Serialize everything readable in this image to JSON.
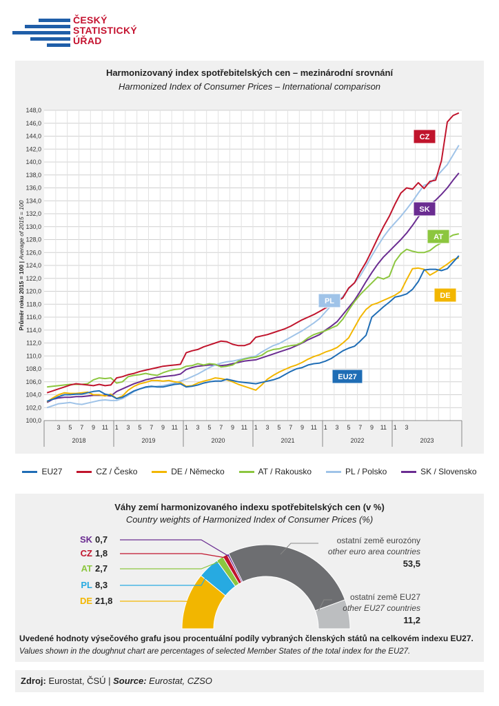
{
  "logo": {
    "line1": "ČESKÝ",
    "line2": "STATISTICKÝ",
    "line3": "ÚŘAD"
  },
  "header": {
    "title_cz": "Harmonizovaný index spotřebitelských cen – mezinárodní srovnání",
    "title_en": "Harmonized Index of Consumer Prices – International comparison"
  },
  "chart_data": [
    {
      "type": "line",
      "ylabel_cz": "Průměr roku 2015 = 100",
      "ylabel_sep": " | ",
      "ylabel_en": "Average of 2015 = 100",
      "ylim": [
        100,
        148
      ],
      "yticks": [
        "100,0",
        "102,0",
        "104,0",
        "106,0",
        "108,0",
        "110,0",
        "112,0",
        "114,0",
        "116,0",
        "118,0",
        "120,0",
        "122,0",
        "124,0",
        "126,0",
        "128,0",
        "130,0",
        "132,0",
        "134,0",
        "136,0",
        "138,0",
        "140,0",
        "142,0",
        "144,0",
        "146,0",
        "148,0"
      ],
      "x_month_ticks": [
        "3",
        "5",
        "7",
        "9",
        "11",
        "1",
        "3",
        "5",
        "7",
        "9",
        "11",
        "1",
        "3",
        "5",
        "7",
        "9",
        "11",
        "1",
        "3",
        "5",
        "7",
        "9",
        "11",
        "1",
        "3",
        "5",
        "7",
        "9",
        "11",
        "1",
        "3"
      ],
      "years": [
        "2018",
        "2019",
        "2020",
        "2021",
        "2022",
        "2023"
      ],
      "x_start": "2018-01",
      "x_end": "2023-03",
      "grid": true,
      "series": [
        {
          "name": "EU27",
          "color": "#1f6db5",
          "label": "EU27",
          "values": [
            103.0,
            103.3,
            103.7,
            104.0,
            104.0,
            104.1,
            104.1,
            104.3,
            104.5,
            104.6,
            104.1,
            103.9,
            103.4,
            103.6,
            104.1,
            104.6,
            104.9,
            105.2,
            105.3,
            105.2,
            105.2,
            105.4,
            105.6,
            105.7,
            105.2,
            105.3,
            105.5,
            105.8,
            106.0,
            106.1,
            106.1,
            106.4,
            106.2,
            106.0,
            105.9,
            105.8,
            105.7,
            105.9,
            106.1,
            106.3,
            106.6,
            107.1,
            107.6,
            108.0,
            108.2,
            108.6,
            108.8,
            108.9,
            109.2,
            109.6,
            110.2,
            110.8,
            111.2,
            111.5,
            112.3,
            113.2,
            116.0,
            116.8,
            117.6,
            118.3,
            119.1,
            119.3,
            119.6,
            120.3,
            121.5,
            123.3,
            123.4,
            123.4,
            123.2,
            123.5,
            124.5,
            125.5
          ]
        },
        {
          "name": "CZ / Česko",
          "color": "#c0142c",
          "label": "CZ",
          "values": [
            104.3,
            104.6,
            104.9,
            105.2,
            105.5,
            105.7,
            105.6,
            105.5,
            105.4,
            105.6,
            105.4,
            105.5,
            106.6,
            106.8,
            107.1,
            107.3,
            107.6,
            107.8,
            108.0,
            108.2,
            108.4,
            108.5,
            108.6,
            108.7,
            110.5,
            110.8,
            111.0,
            111.4,
            111.7,
            112.0,
            112.3,
            112.2,
            111.8,
            111.6,
            111.6,
            111.9,
            112.9,
            113.1,
            113.3,
            113.6,
            113.9,
            114.2,
            114.6,
            115.1,
            115.6,
            116.0,
            116.4,
            116.9,
            117.4,
            117.8,
            118.4,
            119.0,
            120.5,
            121.3,
            123.0,
            124.5,
            126.3,
            128.2,
            130.0,
            131.6,
            133.5,
            135.2,
            136.0,
            135.8,
            136.8,
            135.9,
            137.0,
            137.2,
            140.2,
            146.2,
            147.2,
            147.6
          ]
        },
        {
          "name": "DE / Německo",
          "color": "#f2b600",
          "label": "DE",
          "values": [
            102.9,
            103.5,
            104.0,
            104.3,
            104.2,
            104.2,
            104.3,
            104.4,
            104.0,
            104.0,
            103.8,
            104.1,
            103.4,
            103.8,
            104.7,
            105.3,
            105.7,
            105.9,
            106.2,
            106.2,
            106.1,
            106.2,
            106.0,
            105.9,
            105.3,
            105.4,
            105.8,
            106.1,
            106.3,
            106.6,
            106.5,
            106.3,
            106.0,
            105.6,
            105.3,
            105.0,
            104.7,
            105.5,
            106.4,
            107.0,
            107.5,
            107.9,
            108.3,
            108.6,
            109.0,
            109.5,
            109.9,
            110.2,
            110.6,
            110.9,
            111.3,
            112.0,
            112.8,
            114.4,
            116.0,
            117.2,
            117.9,
            118.2,
            118.6,
            119.0,
            119.4,
            120.0,
            121.8,
            123.5,
            123.6,
            123.4,
            122.5,
            123.0,
            123.6,
            124.2,
            124.9,
            125.2
          ]
        },
        {
          "name": "AT / Rakousko",
          "color": "#8cc63f",
          "label": "AT",
          "values": [
            105.2,
            105.3,
            105.4,
            105.5,
            105.6,
            105.6,
            105.6,
            105.7,
            106.3,
            106.6,
            106.5,
            106.6,
            105.8,
            106.0,
            106.8,
            107.0,
            107.1,
            107.3,
            107.1,
            107.0,
            107.4,
            107.7,
            107.9,
            108.0,
            108.4,
            108.5,
            108.8,
            108.6,
            108.8,
            108.7,
            108.3,
            108.4,
            108.6,
            109.2,
            109.5,
            109.7,
            109.8,
            110.1,
            110.7,
            111.0,
            111.1,
            111.4,
            111.6,
            111.7,
            112.1,
            112.8,
            113.3,
            113.6,
            113.9,
            114.3,
            114.7,
            115.7,
            117.1,
            118.4,
            119.5,
            120.4,
            121.3,
            122.2,
            121.9,
            122.3,
            124.6,
            125.8,
            126.5,
            126.2,
            126.0,
            126.0,
            126.3,
            127.0,
            127.5,
            128.2,
            128.7,
            128.9
          ]
        },
        {
          "name": "PL / Polsko",
          "color": "#9fc3e8",
          "label": "PL",
          "values": [
            102.0,
            102.3,
            102.6,
            102.7,
            102.8,
            102.6,
            102.5,
            102.7,
            102.9,
            103.1,
            103.2,
            103.1,
            103.1,
            103.4,
            103.9,
            104.5,
            104.9,
            105.1,
            105.2,
            105.3,
            105.4,
            105.6,
            105.8,
            106.1,
            106.4,
            106.8,
            107.2,
            107.7,
            108.2,
            108.6,
            108.9,
            109.1,
            109.2,
            109.4,
            109.6,
            109.8,
            110.0,
            110.6,
            111.1,
            111.6,
            111.9,
            112.4,
            112.9,
            113.4,
            113.9,
            114.5,
            115.1,
            115.8,
            116.8,
            117.8,
            118.4,
            119.2,
            120.4,
            121.3,
            122.4,
            123.9,
            125.5,
            127.0,
            128.4,
            129.6,
            130.6,
            131.6,
            132.7,
            133.9,
            135.2,
            136.4,
            136.7,
            137.6,
            138.6,
            139.6,
            141.1,
            142.6
          ]
        },
        {
          "name": "SK / Slovensko",
          "color": "#6a2c91",
          "label": "SK",
          "values": [
            102.8,
            103.3,
            103.5,
            103.6,
            103.6,
            103.7,
            103.7,
            103.8,
            103.9,
            103.9,
            103.9,
            103.8,
            104.5,
            104.9,
            105.3,
            105.7,
            106.0,
            106.3,
            106.5,
            106.7,
            106.8,
            106.9,
            107.0,
            107.2,
            107.9,
            108.2,
            108.4,
            108.5,
            108.6,
            108.6,
            108.5,
            108.6,
            108.8,
            109.0,
            109.2,
            109.3,
            109.4,
            109.7,
            110.0,
            110.3,
            110.6,
            110.9,
            111.2,
            111.6,
            112.0,
            112.5,
            112.9,
            113.3,
            114.0,
            114.6,
            115.3,
            116.4,
            117.5,
            118.6,
            120.0,
            121.5,
            122.9,
            124.2,
            125.3,
            126.2,
            127.1,
            128.0,
            129.0,
            130.2,
            131.5,
            132.6,
            133.4,
            134.1,
            135.0,
            136.0,
            137.2,
            138.3
          ]
        }
      ],
      "legend": [
        "EU27",
        "CZ / Česko",
        "DE / Německo",
        "AT / Rakousko",
        "PL / Polsko",
        "SK / Slovensko"
      ],
      "legend_position": "bottom"
    },
    {
      "type": "pie",
      "title_cz": "Váhy zemí harmonizovaného indexu spotřebitelských cen (v %)",
      "title_en": "Country weights of Harmonized Index of Consumer Prices (%)",
      "slices": [
        {
          "code": "DE",
          "value": 21.8,
          "value_text": "21,8",
          "color": "#f2b600"
        },
        {
          "code": "PL",
          "value": 8.3,
          "value_text": "8,3",
          "color": "#27aae1"
        },
        {
          "code": "AT",
          "value": 2.7,
          "value_text": "2,7",
          "color": "#8cc63f"
        },
        {
          "code": "CZ",
          "value": 1.8,
          "value_text": "1,8",
          "color": "#c0142c"
        },
        {
          "code": "SK",
          "value": 0.7,
          "value_text": "0,7",
          "color": "#6a2c91"
        },
        {
          "code": "euro",
          "label_cz": "ostatní země eurozóny",
          "label_en": "other euro area countries",
          "value": 53.5,
          "value_text": "53,5",
          "color": "#6d6e71"
        },
        {
          "code": "eu27",
          "label_cz": "ostatní země EU27",
          "label_en": "other EU27 countries",
          "value": 11.2,
          "value_text": "11,2",
          "color": "#bcbec0"
        }
      ]
    }
  ],
  "note": {
    "cz": "Uvedené hodnoty výsečového grafu jsou procentuální podíly vybraných členských států na celkovém indexu EU27.",
    "en": "Values shown in the doughnut chart are percentages of selected Member States of the total index for the EU27."
  },
  "source": {
    "label_cz": "Zdroj:",
    "text_cz": " Eurostat, ČSÚ | ",
    "label_en": "Source:",
    "text_en": " Eurostat, CZSO"
  }
}
